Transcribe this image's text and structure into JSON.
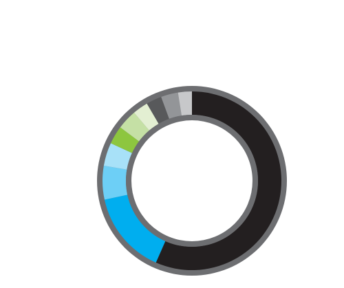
{
  "chart_data": {
    "type": "donut",
    "values": [
      56.6,
      15,
      6.1,
      4.2,
      3.3,
      3.6,
      2.8,
      2.8,
      3.1,
      2.5
    ],
    "colors": [
      "#231f20",
      "#00aeef",
      "#6dcff6",
      "#a8e1f8",
      "#8dc63f",
      "#c5e0a5",
      "#e3efd2",
      "#58595b",
      "#939598",
      "#c7c8ca"
    ]
  }
}
